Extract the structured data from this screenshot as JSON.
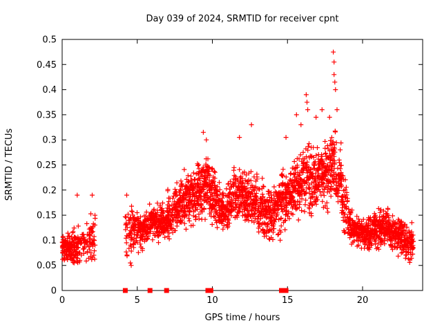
{
  "chart_data": {
    "type": "scatter",
    "title": "Day 039 of 2024, SRMTID for receiver cpnt",
    "xlabel": "GPS time / hours",
    "ylabel": "SRMTID / TECUs",
    "xlim": [
      0,
      24
    ],
    "ylim": [
      0,
      0.5
    ],
    "xticks": [
      0,
      5,
      10,
      15,
      20
    ],
    "ytick_labels": [
      "0",
      "0.05",
      "0.1",
      "0.15",
      "0.2",
      "0.25",
      "0.3",
      "0.35",
      "0.4",
      "0.45",
      "0.5"
    ],
    "ytick_values": [
      0,
      0.05,
      0.1,
      0.15,
      0.2,
      0.25,
      0.3,
      0.35,
      0.4,
      0.45,
      0.5
    ],
    "grid": false,
    "legend": "none",
    "marker": "plus",
    "marker_color": "#ff0000",
    "point_clusters_note": "dense scatter approximated by per-bin envelopes [x0,x1,n,center,spread,ymin,ymax]",
    "bins": [
      [
        0.0,
        0.3,
        45,
        0.08,
        0.028,
        0.045,
        0.145
      ],
      [
        0.3,
        0.7,
        55,
        0.085,
        0.03,
        0.05,
        0.155
      ],
      [
        0.7,
        1.1,
        50,
        0.085,
        0.035,
        0.05,
        0.18
      ],
      [
        1.1,
        1.5,
        25,
        0.09,
        0.03,
        0.055,
        0.155
      ],
      [
        1.5,
        1.8,
        15,
        0.09,
        0.035,
        0.05,
        0.16
      ],
      [
        1.8,
        2.2,
        40,
        0.1,
        0.04,
        0.06,
        0.19
      ],
      [
        4.15,
        4.6,
        35,
        0.11,
        0.05,
        0.045,
        0.19
      ],
      [
        4.6,
        5.0,
        45,
        0.12,
        0.04,
        0.06,
        0.19
      ],
      [
        5.0,
        5.4,
        50,
        0.12,
        0.035,
        0.07,
        0.18
      ],
      [
        5.4,
        5.8,
        50,
        0.125,
        0.03,
        0.08,
        0.18
      ],
      [
        5.8,
        6.2,
        55,
        0.14,
        0.035,
        0.09,
        0.21
      ],
      [
        6.2,
        6.6,
        55,
        0.135,
        0.033,
        0.08,
        0.2
      ],
      [
        6.6,
        7.0,
        55,
        0.135,
        0.035,
        0.08,
        0.21
      ],
      [
        7.0,
        7.4,
        55,
        0.15,
        0.04,
        0.09,
        0.24
      ],
      [
        7.4,
        7.8,
        55,
        0.165,
        0.045,
        0.1,
        0.26
      ],
      [
        7.8,
        8.2,
        60,
        0.175,
        0.045,
        0.11,
        0.28
      ],
      [
        8.2,
        8.6,
        60,
        0.185,
        0.05,
        0.11,
        0.29
      ],
      [
        8.6,
        9.0,
        60,
        0.19,
        0.05,
        0.12,
        0.3
      ],
      [
        9.0,
        9.4,
        60,
        0.2,
        0.05,
        0.12,
        0.31
      ],
      [
        9.4,
        9.8,
        60,
        0.21,
        0.05,
        0.13,
        0.32
      ],
      [
        9.8,
        10.2,
        60,
        0.19,
        0.05,
        0.11,
        0.3
      ],
      [
        10.2,
        10.6,
        55,
        0.165,
        0.04,
        0.1,
        0.25
      ],
      [
        10.6,
        11.0,
        55,
        0.16,
        0.04,
        0.1,
        0.25
      ],
      [
        11.0,
        11.4,
        55,
        0.17,
        0.045,
        0.1,
        0.27
      ],
      [
        11.4,
        11.8,
        55,
        0.185,
        0.05,
        0.11,
        0.3
      ],
      [
        11.8,
        12.2,
        55,
        0.185,
        0.05,
        0.11,
        0.3
      ],
      [
        12.2,
        12.6,
        55,
        0.18,
        0.05,
        0.1,
        0.32
      ],
      [
        12.6,
        13.0,
        55,
        0.175,
        0.05,
        0.1,
        0.31
      ],
      [
        13.0,
        13.4,
        55,
        0.16,
        0.045,
        0.09,
        0.28
      ],
      [
        13.4,
        13.8,
        55,
        0.155,
        0.045,
        0.085,
        0.27
      ],
      [
        13.8,
        14.2,
        55,
        0.16,
        0.045,
        0.09,
        0.28
      ],
      [
        14.2,
        14.6,
        55,
        0.17,
        0.05,
        0.095,
        0.29
      ],
      [
        14.6,
        15.0,
        55,
        0.185,
        0.05,
        0.1,
        0.31
      ],
      [
        15.0,
        15.4,
        55,
        0.19,
        0.05,
        0.1,
        0.32
      ],
      [
        15.4,
        15.8,
        55,
        0.205,
        0.055,
        0.11,
        0.34
      ],
      [
        15.8,
        16.2,
        55,
        0.215,
        0.055,
        0.11,
        0.36
      ],
      [
        16.2,
        16.6,
        55,
        0.22,
        0.06,
        0.11,
        0.385
      ],
      [
        16.6,
        17.0,
        55,
        0.22,
        0.055,
        0.12,
        0.35
      ],
      [
        17.0,
        17.4,
        55,
        0.225,
        0.055,
        0.12,
        0.36
      ],
      [
        17.4,
        17.8,
        55,
        0.23,
        0.055,
        0.12,
        0.365
      ],
      [
        17.8,
        18.2,
        60,
        0.25,
        0.07,
        0.13,
        0.46
      ],
      [
        18.2,
        18.6,
        50,
        0.22,
        0.06,
        0.12,
        0.4
      ],
      [
        18.6,
        19.0,
        50,
        0.17,
        0.05,
        0.1,
        0.3
      ],
      [
        19.0,
        19.4,
        50,
        0.13,
        0.035,
        0.08,
        0.22
      ],
      [
        19.4,
        19.8,
        50,
        0.12,
        0.03,
        0.075,
        0.2
      ],
      [
        19.8,
        20.2,
        55,
        0.115,
        0.03,
        0.075,
        0.2
      ],
      [
        20.2,
        20.6,
        60,
        0.115,
        0.03,
        0.08,
        0.2
      ],
      [
        20.6,
        21.0,
        60,
        0.12,
        0.033,
        0.08,
        0.2
      ],
      [
        21.0,
        21.4,
        55,
        0.12,
        0.033,
        0.075,
        0.19
      ],
      [
        21.4,
        21.8,
        60,
        0.125,
        0.03,
        0.08,
        0.19
      ],
      [
        21.8,
        22.2,
        60,
        0.115,
        0.03,
        0.07,
        0.18
      ],
      [
        22.2,
        22.6,
        55,
        0.11,
        0.03,
        0.065,
        0.17
      ],
      [
        22.6,
        23.0,
        55,
        0.1,
        0.03,
        0.055,
        0.16
      ],
      [
        23.0,
        23.4,
        50,
        0.095,
        0.03,
        0.045,
        0.155
      ]
    ],
    "outliers": [
      [
        1.0,
        0.19
      ],
      [
        2.0,
        0.19
      ],
      [
        4.3,
        0.19
      ],
      [
        9.4,
        0.315
      ],
      [
        9.6,
        0.3
      ],
      [
        11.8,
        0.305
      ],
      [
        12.6,
        0.33
      ],
      [
        14.9,
        0.305
      ],
      [
        15.6,
        0.35
      ],
      [
        15.9,
        0.33
      ],
      [
        16.25,
        0.39
      ],
      [
        16.3,
        0.375
      ],
      [
        16.35,
        0.36
      ],
      [
        16.9,
        0.345
      ],
      [
        17.3,
        0.36
      ],
      [
        17.8,
        0.345
      ],
      [
        18.05,
        0.475
      ],
      [
        18.1,
        0.455
      ],
      [
        18.1,
        0.43
      ],
      [
        18.15,
        0.415
      ],
      [
        18.2,
        0.4
      ],
      [
        18.3,
        0.36
      ]
    ],
    "zero_markers_x": [
      4.2,
      5.85,
      6.95,
      9.7,
      9.9,
      14.6,
      14.9
    ]
  }
}
